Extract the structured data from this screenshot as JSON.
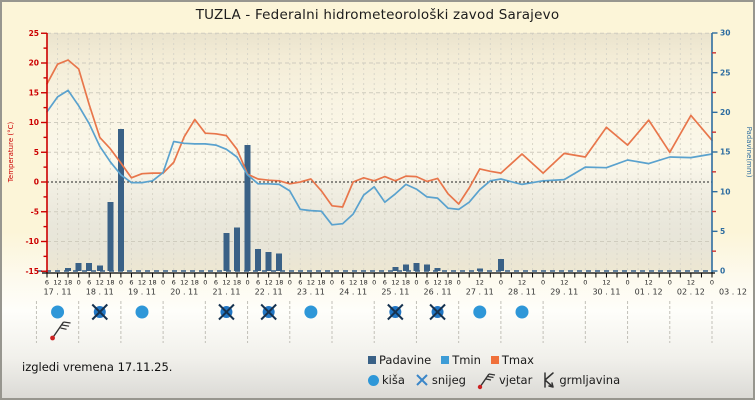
{
  "title": "TUZLA - Federalni hidrometeorološki zavod Sarajevo",
  "footer_text": "izgledi vremena 17.11.25.",
  "legend": {
    "series": [
      {
        "label": "Padavine",
        "color": "#3A6186"
      },
      {
        "label": "Tmin",
        "color": "#3D9CD6"
      },
      {
        "label": "Tmax",
        "color": "#F0703A"
      }
    ],
    "symbols": [
      {
        "label": "kiša",
        "icon": "rain-dot-icon",
        "color": "#2E97D8"
      },
      {
        "label": "snijeg",
        "icon": "snowflake-x-icon",
        "color": "#3A86C8"
      },
      {
        "label": "vjetar",
        "icon": "wind-barb-icon",
        "color": "#333333"
      },
      {
        "label": "grmljavina",
        "icon": "thunder-icon",
        "color": "#333333"
      }
    ]
  },
  "colors": {
    "tmax_line": "#E8764B",
    "tmin_line": "#5AA2CE",
    "precip_bar": "#3A6186",
    "axis_left": "#CC0000",
    "axis_right": "#2E6DA0",
    "grid": "#D9D6C9",
    "zero_line": "#222222",
    "zero_precip_dash": "#335C85",
    "rain_icon": "#2E97D8",
    "snow_icon": "#2176C4"
  },
  "chart_data": {
    "type": "mixed-line-bar",
    "title": "TUZLA - Federalni hidrometeorološki zavod Sarajevo",
    "x_unit": "hours since 17.11 00:00",
    "x_range_hours": [
      6,
      384
    ],
    "y_left": {
      "label": "Temperature (°C)",
      "min": -15,
      "max": 25,
      "tick": 5
    },
    "y_right": {
      "label": "Padavine(mm)",
      "min": 0,
      "max": 30,
      "tick": 5
    },
    "grid": true,
    "legend_position": "bottom",
    "series": [
      {
        "name": "Tmax",
        "kind": "line",
        "axis": "left",
        "color": "#E8764B",
        "points": [
          [
            6,
            16.5
          ],
          [
            12,
            19.8
          ],
          [
            18,
            20.5
          ],
          [
            24,
            19.0
          ],
          [
            30,
            13.0
          ],
          [
            36,
            7.5
          ],
          [
            42,
            5.6
          ],
          [
            48,
            3.2
          ],
          [
            54,
            0.7
          ],
          [
            60,
            1.4
          ],
          [
            66,
            1.5
          ],
          [
            72,
            1.5
          ],
          [
            78,
            3.3
          ],
          [
            84,
            7.6
          ],
          [
            90,
            10.5
          ],
          [
            96,
            8.2
          ],
          [
            102,
            8.1
          ],
          [
            108,
            7.8
          ],
          [
            114,
            5.5
          ],
          [
            120,
            1.3
          ],
          [
            126,
            0.5
          ],
          [
            132,
            0.3
          ],
          [
            138,
            0.2
          ],
          [
            144,
            -0.3
          ],
          [
            150,
            0.0
          ],
          [
            156,
            0.5
          ],
          [
            162,
            -1.5
          ],
          [
            168,
            -4.0
          ],
          [
            174,
            -4.2
          ],
          [
            180,
            0.0
          ],
          [
            186,
            0.7
          ],
          [
            192,
            0.2
          ],
          [
            198,
            0.9
          ],
          [
            204,
            0.2
          ],
          [
            210,
            1.0
          ],
          [
            216,
            0.9
          ],
          [
            222,
            0.1
          ],
          [
            228,
            0.6
          ],
          [
            234,
            -2.0
          ],
          [
            240,
            -3.7
          ],
          [
            246,
            -1.0
          ],
          [
            252,
            2.2
          ],
          [
            258,
            1.8
          ],
          [
            264,
            1.5
          ],
          [
            276,
            4.7
          ],
          [
            288,
            1.5
          ],
          [
            300,
            4.8
          ],
          [
            312,
            4.2
          ],
          [
            324,
            9.2
          ],
          [
            336,
            6.2
          ],
          [
            348,
            10.4
          ],
          [
            360,
            5.0
          ],
          [
            372,
            11.2
          ],
          [
            384,
            7.0
          ]
        ]
      },
      {
        "name": "Tmin",
        "kind": "line",
        "axis": "left",
        "color": "#5AA2CE",
        "points": [
          [
            6,
            11.8
          ],
          [
            12,
            14.3
          ],
          [
            18,
            15.4
          ],
          [
            24,
            12.8
          ],
          [
            30,
            9.8
          ],
          [
            36,
            6.0
          ],
          [
            42,
            3.4
          ],
          [
            48,
            1.2
          ],
          [
            54,
            -0.1
          ],
          [
            60,
            -0.1
          ],
          [
            66,
            0.2
          ],
          [
            72,
            1.6
          ],
          [
            78,
            6.8
          ],
          [
            84,
            6.5
          ],
          [
            90,
            6.4
          ],
          [
            96,
            6.4
          ],
          [
            102,
            6.2
          ],
          [
            108,
            5.5
          ],
          [
            114,
            4.2
          ],
          [
            120,
            1.2
          ],
          [
            126,
            -0.3
          ],
          [
            132,
            -0.3
          ],
          [
            138,
            -0.4
          ],
          [
            144,
            -1.5
          ],
          [
            150,
            -4.6
          ],
          [
            156,
            -4.8
          ],
          [
            162,
            -4.9
          ],
          [
            168,
            -7.2
          ],
          [
            174,
            -7.0
          ],
          [
            180,
            -5.4
          ],
          [
            186,
            -2.2
          ],
          [
            192,
            -0.8
          ],
          [
            198,
            -3.4
          ],
          [
            204,
            -2.0
          ],
          [
            210,
            -0.4
          ],
          [
            216,
            -1.2
          ],
          [
            222,
            -2.5
          ],
          [
            228,
            -2.7
          ],
          [
            234,
            -4.4
          ],
          [
            240,
            -4.6
          ],
          [
            246,
            -3.4
          ],
          [
            252,
            -1.3
          ],
          [
            258,
            0.2
          ],
          [
            264,
            0.5
          ],
          [
            276,
            -0.4
          ],
          [
            288,
            0.2
          ],
          [
            300,
            0.4
          ],
          [
            312,
            2.5
          ],
          [
            324,
            2.4
          ],
          [
            336,
            3.7
          ],
          [
            348,
            3.1
          ],
          [
            360,
            4.2
          ],
          [
            372,
            4.1
          ],
          [
            384,
            4.7
          ]
        ]
      },
      {
        "name": "Padavine",
        "kind": "bar",
        "axis": "right",
        "color": "#3A6186",
        "points": [
          [
            18,
            0.4
          ],
          [
            24,
            1.0
          ],
          [
            30,
            1.0
          ],
          [
            36,
            0.7
          ],
          [
            42,
            8.7
          ],
          [
            48,
            17.9
          ],
          [
            108,
            4.8
          ],
          [
            114,
            5.5
          ],
          [
            120,
            15.9
          ],
          [
            126,
            2.8
          ],
          [
            132,
            2.4
          ],
          [
            138,
            2.2
          ],
          [
            204,
            0.5
          ],
          [
            210,
            0.8
          ],
          [
            216,
            1.0
          ],
          [
            222,
            0.8
          ],
          [
            228,
            0.4
          ],
          [
            252,
            0.3
          ],
          [
            264,
            1.5
          ]
        ]
      }
    ],
    "left_tick_labels": [
      "25",
      "20",
      "15",
      "10",
      "5",
      "0",
      "-5",
      "-10",
      "-15"
    ],
    "right_tick_labels": [
      "30",
      "25",
      "20",
      "15",
      "10",
      "5",
      "0"
    ],
    "days": [
      {
        "date": "17 . 11",
        "hours": [
          "6",
          "12",
          "18",
          "0"
        ],
        "icons": [
          "kisa",
          "vjetar"
        ]
      },
      {
        "date": "18 . 11",
        "hours": [
          "6",
          "12",
          "18",
          "0"
        ],
        "icons": [
          "snijeg"
        ]
      },
      {
        "date": "19 . 11",
        "hours": [
          "6",
          "12",
          "18",
          "0"
        ],
        "icons": [
          "kisa"
        ]
      },
      {
        "date": "20 . 11",
        "hours": [
          "6",
          "12",
          "18",
          "0"
        ],
        "icons": []
      },
      {
        "date": "21 . 11",
        "hours": [
          "6",
          "12",
          "18",
          "0"
        ],
        "icons": [
          "snijeg"
        ]
      },
      {
        "date": "22 . 11",
        "hours": [
          "6",
          "12",
          "18",
          "0"
        ],
        "icons": [
          "snijeg"
        ]
      },
      {
        "date": "23 . 11",
        "hours": [
          "6",
          "12",
          "18",
          "0"
        ],
        "icons": [
          "kisa"
        ]
      },
      {
        "date": "24 . 11",
        "hours": [
          "6",
          "12",
          "18",
          "0"
        ],
        "icons": []
      },
      {
        "date": "25 . 11",
        "hours": [
          "6",
          "12",
          "18",
          "0"
        ],
        "icons": [
          "snijeg"
        ]
      },
      {
        "date": "26 . 11",
        "hours": [
          "6",
          "12",
          "18",
          "0"
        ],
        "icons": [
          "snijeg"
        ]
      },
      {
        "date": "27 . 11",
        "hours": [
          "12",
          "0"
        ],
        "icons": [
          "kisa"
        ]
      },
      {
        "date": "28 . 11",
        "hours": [
          "12",
          "0"
        ],
        "icons": [
          "kisa"
        ]
      },
      {
        "date": "29 . 11",
        "hours": [
          "12",
          "0"
        ],
        "icons": []
      },
      {
        "date": "30 . 11",
        "hours": [
          "12",
          "0"
        ],
        "icons": []
      },
      {
        "date": "01 . 12",
        "hours": [
          "12",
          "0"
        ],
        "icons": []
      },
      {
        "date": "02 . 12",
        "hours": [
          "12",
          "0"
        ],
        "icons": []
      }
    ],
    "end_date_label": "03 . 12"
  }
}
